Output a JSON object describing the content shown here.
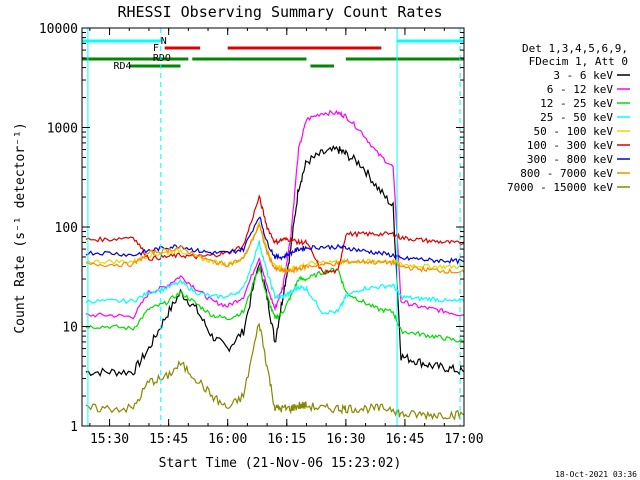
{
  "chart_data": {
    "type": "line",
    "title": "RHESSI Observing Summary Count Rates",
    "xlabel": "Start Time (21-Nov-06 15:23:02)",
    "ylabel": "Count Rate (s⁻¹ detector⁻¹)",
    "y_scale": "log",
    "xlim": [
      "15:23",
      "17:00"
    ],
    "ylim": [
      1,
      10000
    ],
    "x_ticks": [
      "15:30",
      "15:45",
      "16:00",
      "16:15",
      "16:30",
      "16:45",
      "17:00"
    ],
    "y_ticks": [
      "1",
      "10",
      "100",
      "1000",
      "10000"
    ],
    "footer": "18-Oct-2021 03:36",
    "legend": {
      "placement": "right",
      "header": [
        "Det 1,3,4,5,6,9,",
        "FDecim 1, Att 0"
      ],
      "entries": [
        {
          "label": "3 - 6 keV",
          "color": "#000000"
        },
        {
          "label": "6 - 12 keV",
          "color": "#ff00ff"
        },
        {
          "label": "12 - 25 keV",
          "color": "#00dd00"
        },
        {
          "label": "25 - 50 keV",
          "color": "#00ffff"
        },
        {
          "label": "50 - 100 keV",
          "color": "#dddd00"
        },
        {
          "label": "100 - 300 keV",
          "color": "#dd0000"
        },
        {
          "label": "300 - 800 keV",
          "color": "#0000dd"
        },
        {
          "label": "800 - 7000 keV",
          "color": "#ff8800"
        },
        {
          "label": "7000 - 15000 keV",
          "color": "#888800"
        }
      ]
    },
    "x": [
      "15:24",
      "15:30",
      "15:36",
      "15:40",
      "15:44",
      "15:48",
      "15:52",
      "15:56",
      "16:00",
      "16:04",
      "16:08",
      "16:10",
      "16:12",
      "16:14",
      "16:16",
      "16:18",
      "16:20",
      "16:24",
      "16:28",
      "16:30",
      "16:34",
      "16:38",
      "16:42",
      "16:44",
      "16:48",
      "16:52",
      "16:56",
      "17:00"
    ],
    "series": [
      {
        "name": "3 - 6 keV",
        "color": "#000000",
        "values": [
          3.5,
          3.5,
          3.5,
          6,
          12,
          22,
          15,
          8,
          6,
          9,
          45,
          20,
          7,
          20,
          60,
          250,
          450,
          550,
          600,
          540,
          420,
          250,
          160,
          5,
          4.5,
          4,
          3.8,
          3.5
        ]
      },
      {
        "name": "6 - 12 keV",
        "color": "#ff00ff",
        "values": [
          13,
          13,
          12.5,
          22,
          25,
          32,
          24,
          18,
          16,
          20,
          50,
          25,
          15,
          25,
          80,
          600,
          1200,
          1400,
          1400,
          1300,
          900,
          550,
          400,
          18,
          16,
          15,
          14,
          13
        ]
      },
      {
        "name": "12 - 25 keV",
        "color": "#00dd00",
        "values": [
          10,
          10,
          9.5,
          15,
          17,
          22,
          17,
          13,
          12,
          14,
          40,
          20,
          12,
          14,
          20,
          30,
          30,
          35,
          38,
          22,
          18,
          15,
          14,
          9,
          8.5,
          8,
          7.5,
          7
        ]
      },
      {
        "name": "25 - 50 keV",
        "color": "#00ffff",
        "values": [
          18,
          18,
          18,
          22,
          24,
          28,
          22,
          20,
          20,
          24,
          70,
          35,
          20,
          20,
          22,
          25,
          24,
          14,
          14,
          20,
          24,
          25,
          26,
          20,
          19,
          19,
          18,
          18
        ]
      },
      {
        "name": "50 - 100 keV",
        "color": "#dddd00",
        "values": [
          45,
          45,
          45,
          52,
          55,
          58,
          50,
          45,
          42,
          48,
          110,
          60,
          40,
          38,
          38,
          40,
          42,
          45,
          45,
          45,
          45,
          45,
          46,
          42,
          41,
          40,
          40,
          40
        ]
      },
      {
        "name": "100 - 300 keV",
        "color": "#dd0000",
        "values": [
          75,
          75,
          80,
          48,
          50,
          52,
          50,
          52,
          55,
          65,
          200,
          100,
          70,
          75,
          75,
          70,
          70,
          35,
          36,
          85,
          85,
          85,
          85,
          78,
          75,
          72,
          70,
          68
        ]
      },
      {
        "name": "300 - 800 keV",
        "color": "#0000dd",
        "values": [
          55,
          55,
          52,
          58,
          62,
          65,
          58,
          55,
          55,
          60,
          130,
          70,
          50,
          50,
          55,
          60,
          62,
          63,
          63,
          62,
          58,
          55,
          52,
          48,
          48,
          46,
          46,
          45
        ]
      },
      {
        "name": "800 - 7000 keV",
        "color": "#ff8800",
        "values": [
          42,
          42,
          42,
          55,
          58,
          62,
          52,
          45,
          42,
          48,
          105,
          55,
          38,
          36,
          36,
          38,
          40,
          42,
          43,
          45,
          45,
          44,
          44,
          40,
          38,
          37,
          36,
          35
        ]
      },
      {
        "name": "7000 - 15000 keV",
        "color": "#888800",
        "values": [
          1.5,
          1.5,
          1.5,
          2.8,
          3,
          4.2,
          3,
          2,
          1.5,
          2,
          11,
          4,
          1.5,
          1.5,
          1.5,
          1.6,
          1.6,
          1.5,
          1.5,
          1.5,
          1.5,
          1.5,
          1.5,
          1.3,
          1.3,
          1.3,
          1.3,
          1.3
        ]
      }
    ],
    "flags": [
      {
        "label": "N",
        "color": "#00ffff"
      },
      {
        "label": "F",
        "color": "#dd0000"
      },
      {
        "label": "RDO",
        "color": "#008800"
      },
      {
        "label": "RD4",
        "color": "#008800"
      }
    ]
  }
}
